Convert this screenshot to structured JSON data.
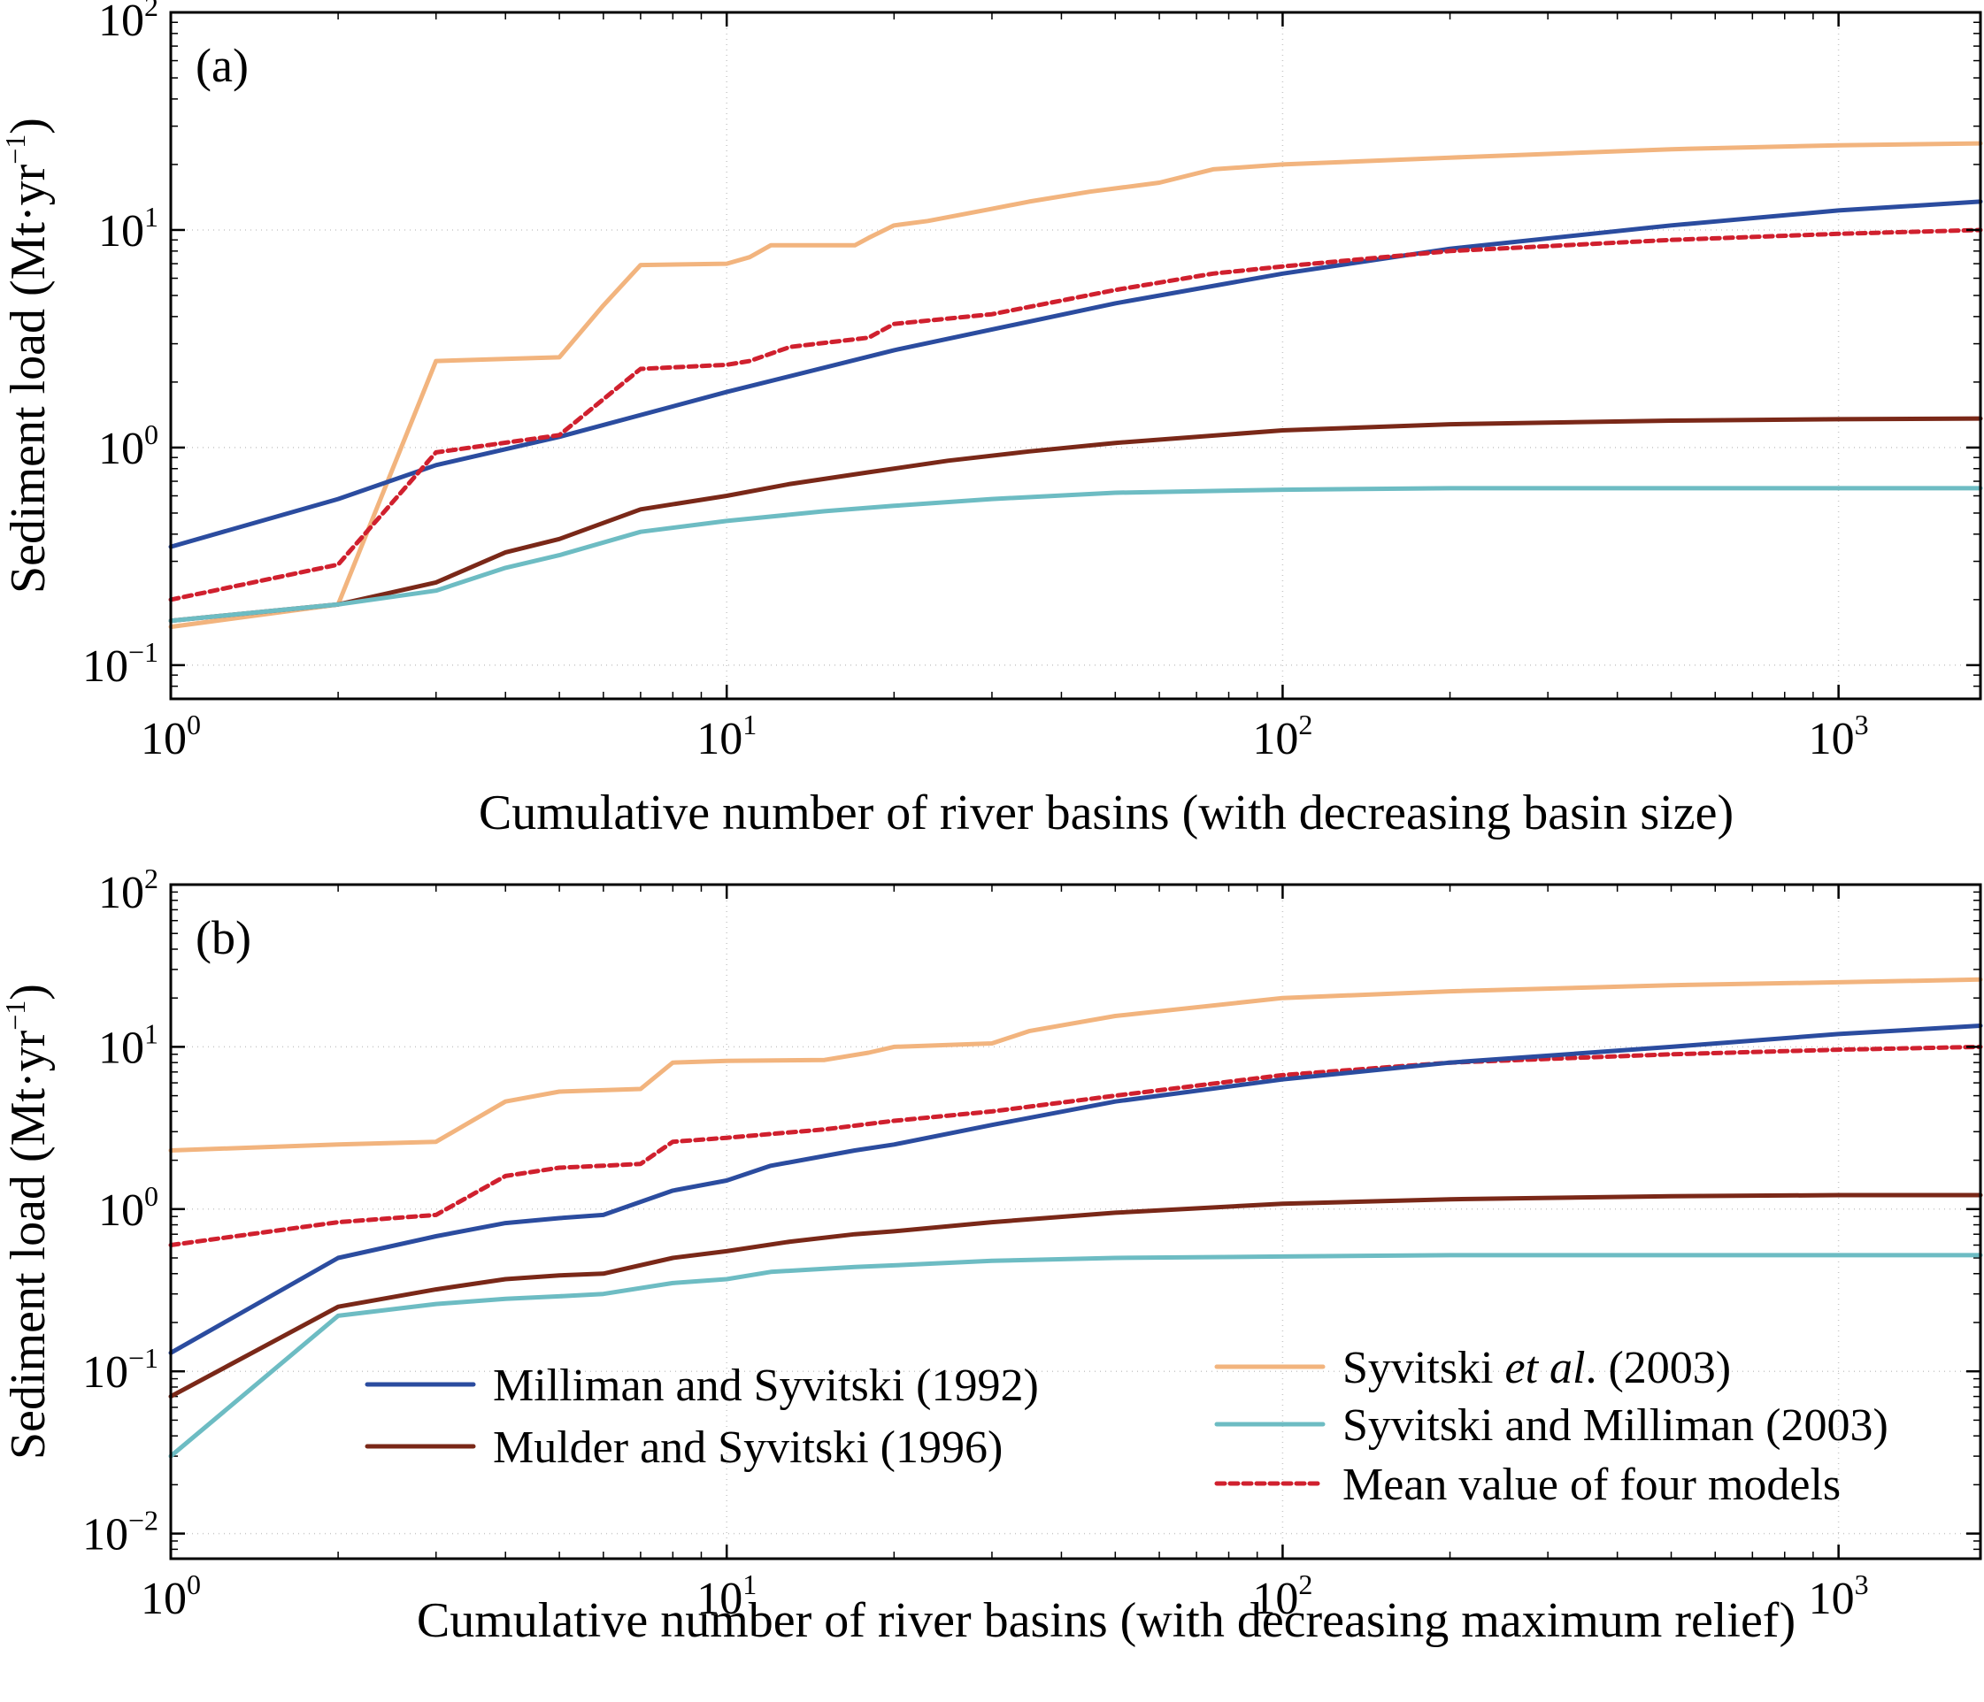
{
  "colors": {
    "milliman": "#2b4c9f",
    "mulder": "#7a2818",
    "syvitski_et_al": "#f2b47e",
    "syvitski_milliman": "#6dbcc3",
    "mean": "#d0202e"
  },
  "legend": {
    "milliman": "Milliman and Syvitski (1992)",
    "mulder": "Mulder and Syvitski (1996)",
    "syvitski_et_al_prefix": "Syvitski ",
    "syvitski_et_al_italic": "et al",
    "syvitski_et_al_suffix": ". (2003)",
    "syvitski_milliman": "Syvitski and Milliman (2003)",
    "mean": "Mean value of four models"
  },
  "chart_data": [
    {
      "type": "line",
      "panel_label": "(a)",
      "xlabel": "Cumulative number of river basins (with decreasing basin size)",
      "ylabel": "Sediment load (Mt·yr",
      "ylabel_exp": "−1",
      "ylabel_close": ")",
      "xscale": "log",
      "yscale": "log",
      "xlim": [
        1,
        1800
      ],
      "ylim": [
        0.07,
        100
      ],
      "xticks": [
        {
          "base": "10",
          "exp": "0",
          "value": 1
        },
        {
          "base": "10",
          "exp": "1",
          "value": 10
        },
        {
          "base": "10",
          "exp": "2",
          "value": 100
        },
        {
          "base": "10",
          "exp": "3",
          "value": 1000
        }
      ],
      "yticks": [
        {
          "base": "10",
          "exp": "−1",
          "value": 0.1
        },
        {
          "base": "10",
          "exp": "0",
          "value": 1
        },
        {
          "base": "10",
          "exp": "1",
          "value": 10
        },
        {
          "base": "10",
          "exp": "2",
          "value": 100
        }
      ],
      "grid": true,
      "series": [
        {
          "key": "syvitski_et_al",
          "name": "Syvitski et al. (2003)",
          "dash": "none",
          "x": [
            1,
            2,
            3,
            5,
            6,
            7,
            10,
            11,
            12,
            17,
            18,
            20,
            23,
            30,
            35,
            45,
            60,
            75,
            100,
            200,
            500,
            1000,
            1800
          ],
          "y": [
            0.15,
            0.19,
            2.5,
            2.6,
            4.5,
            6.9,
            7.0,
            7.5,
            8.5,
            8.5,
            9.2,
            10.5,
            11,
            12.5,
            13.5,
            15,
            16.5,
            19,
            20,
            21.5,
            23.5,
            24.5,
            25
          ]
        },
        {
          "key": "milliman",
          "name": "Milliman and Syvitski (1992)",
          "dash": "none",
          "x": [
            1,
            2,
            3,
            5,
            10,
            20,
            50,
            100,
            200,
            500,
            1000,
            1800
          ],
          "y": [
            0.35,
            0.58,
            0.83,
            1.12,
            1.8,
            2.8,
            4.6,
            6.3,
            8.2,
            10.5,
            12.3,
            13.5
          ]
        },
        {
          "key": "mean",
          "name": "Mean value of four models",
          "dash": "9 6",
          "x": [
            1,
            2,
            3,
            5,
            7,
            10,
            11,
            13,
            18,
            20,
            30,
            50,
            75,
            100,
            200,
            500,
            1000,
            1800
          ],
          "y": [
            0.2,
            0.29,
            0.95,
            1.14,
            2.3,
            2.4,
            2.5,
            2.9,
            3.2,
            3.7,
            4.1,
            5.3,
            6.3,
            6.8,
            8.0,
            9.0,
            9.6,
            10
          ]
        },
        {
          "key": "mulder",
          "name": "Mulder and Syvitski (1996)",
          "dash": "none",
          "x": [
            1,
            2,
            3,
            4,
            5,
            7,
            10,
            13,
            18,
            25,
            35,
            50,
            100,
            200,
            500,
            1000,
            1800
          ],
          "y": [
            0.16,
            0.19,
            0.24,
            0.33,
            0.38,
            0.52,
            0.6,
            0.68,
            0.77,
            0.87,
            0.96,
            1.05,
            1.2,
            1.28,
            1.33,
            1.35,
            1.36
          ]
        },
        {
          "key": "syvitski_milliman",
          "name": "Syvitski and Milliman (2003)",
          "dash": "none",
          "x": [
            1,
            2,
            3,
            4,
            5,
            7,
            10,
            15,
            20,
            30,
            50,
            100,
            200,
            500,
            1000,
            1800
          ],
          "y": [
            0.16,
            0.19,
            0.22,
            0.28,
            0.32,
            0.41,
            0.46,
            0.51,
            0.54,
            0.58,
            0.62,
            0.64,
            0.65,
            0.65,
            0.65,
            0.65
          ]
        }
      ]
    },
    {
      "type": "line",
      "panel_label": "(b)",
      "xlabel": "Cumulative number of river basins (with decreasing maximum relief)",
      "ylabel": "Sediment load (Mt·yr",
      "ylabel_exp": "−1",
      "ylabel_close": ")",
      "xscale": "log",
      "yscale": "log",
      "xlim": [
        1,
        1800
      ],
      "ylim": [
        0.007,
        100
      ],
      "xticks": [
        {
          "base": "10",
          "exp": "0",
          "value": 1
        },
        {
          "base": "10",
          "exp": "1",
          "value": 10
        },
        {
          "base": "10",
          "exp": "2",
          "value": 100
        },
        {
          "base": "10",
          "exp": "3",
          "value": 1000
        }
      ],
      "yticks": [
        {
          "base": "10",
          "exp": "−2",
          "value": 0.01
        },
        {
          "base": "10",
          "exp": "−1",
          "value": 0.1
        },
        {
          "base": "10",
          "exp": "0",
          "value": 1
        },
        {
          "base": "10",
          "exp": "1",
          "value": 10
        },
        {
          "base": "10",
          "exp": "2",
          "value": 100
        }
      ],
      "grid": true,
      "legend_position": "bottom",
      "series": [
        {
          "key": "syvitski_et_al",
          "name": "Syvitski et al. (2003)",
          "dash": "none",
          "x": [
            1,
            2,
            3,
            4,
            5,
            7,
            8,
            10,
            15,
            18,
            20,
            30,
            35,
            50,
            100,
            200,
            500,
            1000,
            1800
          ],
          "y": [
            2.3,
            2.5,
            2.6,
            4.6,
            5.3,
            5.5,
            8.0,
            8.2,
            8.3,
            9.2,
            10.0,
            10.5,
            12.5,
            15.5,
            20,
            22,
            24,
            25,
            26
          ]
        },
        {
          "key": "mean",
          "name": "Mean value of four models",
          "dash": "9 6",
          "x": [
            1,
            2,
            3,
            4,
            5,
            6,
            7,
            8,
            10,
            15,
            20,
            30,
            50,
            100,
            200,
            500,
            1000,
            1800
          ],
          "y": [
            0.6,
            0.83,
            0.92,
            1.6,
            1.8,
            1.85,
            1.9,
            2.6,
            2.75,
            3.1,
            3.5,
            4.0,
            5.0,
            6.7,
            8.0,
            9.0,
            9.6,
            10
          ]
        },
        {
          "key": "milliman",
          "name": "Milliman and Syvitski (1992)",
          "dash": "none",
          "x": [
            1,
            2,
            3,
            4,
            5,
            6,
            8,
            10,
            12,
            17,
            20,
            30,
            50,
            100,
            200,
            500,
            1000,
            1800
          ],
          "y": [
            0.13,
            0.5,
            0.68,
            0.82,
            0.88,
            0.92,
            1.3,
            1.5,
            1.85,
            2.3,
            2.5,
            3.3,
            4.6,
            6.3,
            8.0,
            10.0,
            12,
            13.5
          ]
        },
        {
          "key": "mulder",
          "name": "Mulder and Syvitski (1996)",
          "dash": "none",
          "x": [
            1,
            2,
            3,
            4,
            5,
            6,
            8,
            10,
            13,
            17,
            20,
            30,
            50,
            100,
            200,
            500,
            1000,
            1800
          ],
          "y": [
            0.07,
            0.25,
            0.32,
            0.37,
            0.39,
            0.4,
            0.5,
            0.55,
            0.63,
            0.7,
            0.73,
            0.83,
            0.95,
            1.08,
            1.15,
            1.2,
            1.22,
            1.22
          ]
        },
        {
          "key": "syvitski_milliman",
          "name": "Syvitski and Milliman (2003)",
          "dash": "none",
          "x": [
            1,
            2,
            3,
            4,
            5,
            6,
            8,
            10,
            12,
            17,
            20,
            30,
            50,
            100,
            200,
            500,
            1000,
            1800
          ],
          "y": [
            0.03,
            0.22,
            0.26,
            0.28,
            0.29,
            0.3,
            0.35,
            0.37,
            0.41,
            0.44,
            0.45,
            0.48,
            0.5,
            0.51,
            0.52,
            0.52,
            0.52,
            0.52
          ]
        }
      ]
    }
  ]
}
